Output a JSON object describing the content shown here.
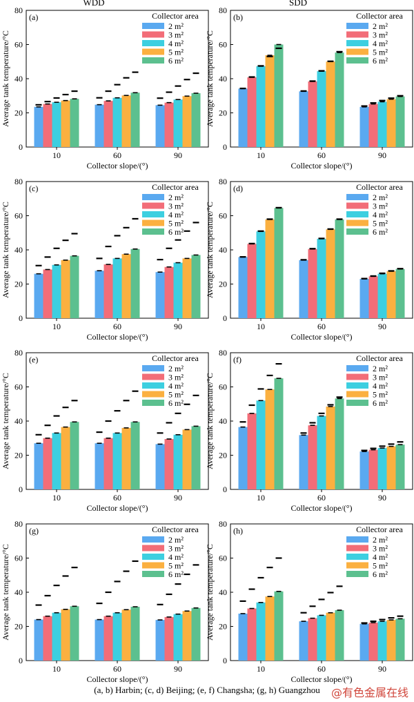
{
  "column_titles": [
    "WDD",
    "SDD"
  ],
  "caption": "(a, b) Harbin; (c, d) Beijing; (e, f) Changsha; (g, h) Guangzhou",
  "watermark": "@有色金属在线",
  "colors": [
    "#5aa9f0",
    "#f26d78",
    "#3dcfe0",
    "#fbb040",
    "#5cc08f"
  ],
  "chart_data": [
    {
      "panel_label": "(a)",
      "type": "bar",
      "title": "",
      "xlabel": "Collector slope/(°)",
      "ylabel": "Average tank temperature/°C",
      "ylim": [
        0,
        80
      ],
      "yticks": [
        0,
        20,
        40,
        60,
        80
      ],
      "categories": [
        "10",
        "60",
        "90"
      ],
      "legend_title": "Collector area",
      "series": [
        {
          "name": "2 m²",
          "values": [
            23.5,
            24.8,
            24.5
          ]
        },
        {
          "name": "3 m²",
          "values": [
            25.2,
            27.0,
            26.0
          ]
        },
        {
          "name": "4 m²",
          "values": [
            26.2,
            28.8,
            27.8
          ]
        },
        {
          "name": "5 m²",
          "values": [
            27.2,
            30.2,
            29.8
          ]
        },
        {
          "name": "6 m²",
          "values": [
            28.2,
            31.8,
            31.5
          ]
        }
      ],
      "dash_values": [
        [
          24.7,
          28.8,
          28.6
        ],
        [
          26.6,
          32.7,
          32.1
        ],
        [
          28.7,
          36.5,
          35.7
        ],
        [
          30.7,
          40.5,
          39.5
        ],
        [
          32.7,
          43.8,
          43.2
        ]
      ]
    },
    {
      "panel_label": "(b)",
      "type": "bar",
      "title": "",
      "xlabel": "Collector slope/(°)",
      "ylabel": "Average tank temperature/°C",
      "ylim": [
        0,
        80
      ],
      "yticks": [
        0,
        20,
        40,
        60,
        80
      ],
      "categories": [
        "10",
        "60",
        "90"
      ],
      "legend_title": "Collector area",
      "series": [
        {
          "name": "2 m²",
          "values": [
            34.2,
            32.6,
            23.5
          ]
        },
        {
          "name": "3 m²",
          "values": [
            40.8,
            38.4,
            25.2
          ]
        },
        {
          "name": "4 m²",
          "values": [
            47.3,
            44.4,
            26.5
          ]
        },
        {
          "name": "5 m²",
          "values": [
            53.7,
            50.0,
            28.0
          ]
        },
        {
          "name": "6 m²",
          "values": [
            60.0,
            55.3,
            29.6
          ]
        }
      ],
      "dash_values": [
        [
          34.3,
          32.8,
          24.0
        ],
        [
          41.0,
          38.6,
          25.8
        ],
        [
          47.5,
          44.6,
          27.2
        ],
        [
          53.0,
          50.2,
          28.6
        ],
        [
          57.8,
          55.8,
          30.0
        ]
      ]
    },
    {
      "panel_label": "(c)",
      "type": "bar",
      "title": "",
      "xlabel": "Collector slope/(°)",
      "ylabel": "Average tank temperature/°C",
      "ylim": [
        0,
        80
      ],
      "yticks": [
        0,
        20,
        40,
        60,
        80
      ],
      "categories": [
        "10",
        "60",
        "90"
      ],
      "legend_title": "Collector area",
      "series": [
        {
          "name": "2 m²",
          "values": [
            26.0,
            27.8,
            27.0
          ]
        },
        {
          "name": "3 m²",
          "values": [
            28.5,
            31.5,
            30.0
          ]
        },
        {
          "name": "4 m²",
          "values": [
            31.2,
            35.0,
            32.5
          ]
        },
        {
          "name": "5 m²",
          "values": [
            34.0,
            37.5,
            35.0
          ]
        },
        {
          "name": "6 m²",
          "values": [
            36.5,
            40.5,
            37.0
          ]
        }
      ],
      "dash_values": [
        [
          30.8,
          35.0,
          34.3
        ],
        [
          35.8,
          42.0,
          40.9
        ],
        [
          40.9,
          48.3,
          45.8
        ],
        [
          45.6,
          53.0,
          51.0
        ],
        [
          49.5,
          58.2,
          56.0
        ]
      ]
    },
    {
      "panel_label": "(d)",
      "type": "bar",
      "title": "",
      "xlabel": "Collector slope/(°)",
      "ylabel": "Average tank temperature/°C",
      "ylim": [
        0,
        80
      ],
      "yticks": [
        0,
        20,
        40,
        60,
        80
      ],
      "categories": [
        "10",
        "60",
        "90"
      ],
      "legend_title": "Collector area",
      "series": [
        {
          "name": "2 m²",
          "values": [
            35.8,
            34.0,
            23.0
          ]
        },
        {
          "name": "3 m²",
          "values": [
            43.5,
            40.5,
            24.5
          ]
        },
        {
          "name": "4 m²",
          "values": [
            50.8,
            46.5,
            26.0
          ]
        },
        {
          "name": "5 m²",
          "values": [
            57.8,
            52.0,
            27.5
          ]
        },
        {
          "name": "6 m²",
          "values": [
            64.5,
            57.8,
            28.8
          ]
        }
      ],
      "dash_values": [
        [
          35.9,
          34.2,
          23.2
        ],
        [
          43.7,
          40.7,
          24.7
        ],
        [
          51.0,
          46.7,
          26.3
        ],
        [
          58.0,
          52.2,
          27.7
        ],
        [
          64.7,
          58.0,
          29.0
        ]
      ]
    },
    {
      "panel_label": "(e)",
      "type": "bar",
      "title": "",
      "xlabel": "Collector slope/(°)",
      "ylabel": "Average tank temperature/°C",
      "ylim": [
        0,
        80
      ],
      "yticks": [
        0,
        20,
        40,
        60,
        80
      ],
      "categories": [
        "10",
        "60",
        "90"
      ],
      "legend_title": "Collector area",
      "series": [
        {
          "name": "2 m²",
          "values": [
            27.0,
            27.0,
            26.5
          ]
        },
        {
          "name": "3 m²",
          "values": [
            30.0,
            30.0,
            29.5
          ]
        },
        {
          "name": "4 m²",
          "values": [
            33.0,
            33.0,
            32.0
          ]
        },
        {
          "name": "5 m²",
          "values": [
            36.5,
            36.0,
            35.0
          ]
        },
        {
          "name": "6 m²",
          "values": [
            39.5,
            39.5,
            37.0
          ]
        }
      ],
      "dash_values": [
        [
          32.0,
          33.5,
          33.0
        ],
        [
          37.5,
          40.0,
          39.0
        ],
        [
          43.0,
          46.0,
          44.5
        ],
        [
          48.0,
          52.0,
          49.8
        ],
        [
          52.0,
          57.5,
          55.0
        ]
      ]
    },
    {
      "panel_label": "(f)",
      "type": "bar",
      "title": "",
      "xlabel": "Collector slope/(°)",
      "ylabel": "Average tank temperature/°C",
      "ylim": [
        0,
        80
      ],
      "yticks": [
        0,
        20,
        40,
        60,
        80
      ],
      "categories": [
        "10",
        "60",
        "90"
      ],
      "legend_title": "Collector area",
      "series": [
        {
          "name": "2 m²",
          "values": [
            36.5,
            31.8,
            22.2
          ]
        },
        {
          "name": "3 m²",
          "values": [
            44.5,
            37.5,
            23.2
          ]
        },
        {
          "name": "4 m²",
          "values": [
            52.0,
            43.0,
            24.2
          ]
        },
        {
          "name": "5 m²",
          "values": [
            58.5,
            48.5,
            25.2
          ]
        },
        {
          "name": "6 m²",
          "values": [
            65.0,
            53.2,
            26.2
          ]
        }
      ],
      "dash_values": [
        [
          39.5,
          33.0,
          22.8
        ],
        [
          49.3,
          39.0,
          24.0
        ],
        [
          58.8,
          44.5,
          25.3
        ],
        [
          66.7,
          49.5,
          26.5
        ],
        [
          73.5,
          54.0,
          27.8
        ]
      ]
    },
    {
      "panel_label": "(g)",
      "type": "bar",
      "title": "",
      "xlabel": "Collector slope/(°)",
      "ylabel": "Average tank temperature/°C",
      "ylim": [
        0,
        80
      ],
      "yticks": [
        0,
        20,
        40,
        60,
        80
      ],
      "categories": [
        "10",
        "60",
        "90"
      ],
      "legend_title": "Collector area",
      "series": [
        {
          "name": "2 m²",
          "values": [
            24.0,
            24.0,
            23.8
          ]
        },
        {
          "name": "3 m²",
          "values": [
            26.0,
            26.0,
            25.5
          ]
        },
        {
          "name": "4 m²",
          "values": [
            28.0,
            28.0,
            27.2
          ]
        },
        {
          "name": "5 m²",
          "values": [
            30.0,
            29.8,
            29.0
          ]
        },
        {
          "name": "6 m²",
          "values": [
            31.8,
            31.5,
            30.8
          ]
        }
      ],
      "dash_values": [
        [
          32.5,
          33.5,
          32.8
        ],
        [
          38.0,
          40.0,
          38.8
        ],
        [
          44.0,
          46.3,
          44.8
        ],
        [
          49.5,
          52.3,
          50.5
        ],
        [
          54.5,
          58.2,
          56.0
        ]
      ]
    },
    {
      "panel_label": "(h)",
      "type": "bar",
      "title": "",
      "xlabel": "Collector slope/(°)",
      "ylabel": "Average tank temperature/°C",
      "ylim": [
        0,
        80
      ],
      "yticks": [
        0,
        20,
        40,
        60,
        80
      ],
      "categories": [
        "10",
        "60",
        "90"
      ],
      "legend_title": "Collector area",
      "series": [
        {
          "name": "2 m²",
          "values": [
            27.5,
            23.0,
            21.5
          ]
        },
        {
          "name": "3 m²",
          "values": [
            30.5,
            24.8,
            22.2
          ]
        },
        {
          "name": "4 m²",
          "values": [
            34.0,
            26.5,
            23.0
          ]
        },
        {
          "name": "5 m²",
          "values": [
            37.5,
            28.0,
            23.8
          ]
        },
        {
          "name": "6 m²",
          "values": [
            40.5,
            29.5,
            24.5
          ]
        }
      ],
      "dash_values": [
        [
          34.8,
          28.0,
          22.0
        ],
        [
          41.8,
          31.8,
          23.0
        ],
        [
          48.5,
          35.8,
          24.0
        ],
        [
          54.5,
          39.8,
          25.0
        ],
        [
          60.0,
          43.5,
          26.0
        ]
      ]
    }
  ]
}
